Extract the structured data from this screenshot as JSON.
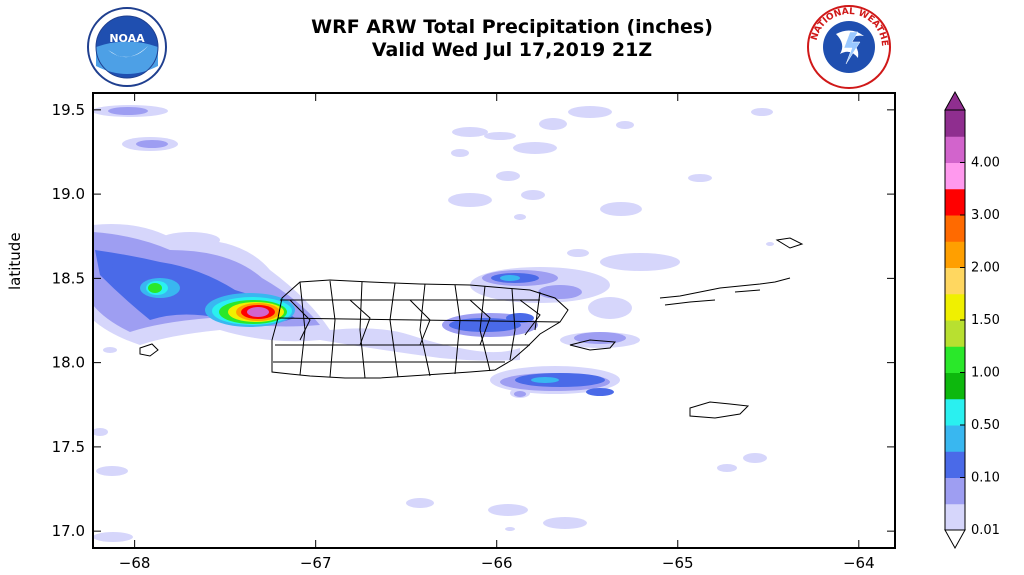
{
  "title": "WRF ARW Total Precipitation (inches)",
  "subtitle": "Valid Wed Jul 17,2019 21Z",
  "logos": [
    {
      "name": "noaa-logo",
      "text": "NOAA"
    },
    {
      "name": "nws-logo",
      "text": "NATIONAL WEATHER SERVICE"
    }
  ],
  "axes": {
    "ylabel": "latitude",
    "xlabel": "",
    "x_ticks": [
      "−68",
      "−67",
      "−66",
      "−65",
      "−64"
    ],
    "x_values": [
      -68,
      -67,
      -66,
      -65,
      -64
    ],
    "y_ticks": [
      "19.5",
      "19.0",
      "18.5",
      "18.0",
      "17.5",
      "17.0"
    ],
    "y_values": [
      19.5,
      19.0,
      18.5,
      18.0,
      17.5,
      17.0
    ],
    "xlim": [
      -68.23,
      -63.8
    ],
    "ylim": [
      16.9,
      19.6
    ]
  },
  "colorbar": {
    "levels": [
      "0.01",
      "0.10",
      "0.50",
      "1.00",
      "1.50",
      "2.00",
      "3.00",
      "4.00"
    ],
    "colors": [
      "#d6d6fb",
      "#9e9ef2",
      "#4a6ae8",
      "#39b7f0",
      "#2af0f0",
      "#0db80d",
      "#2ae82a",
      "#b8e030",
      "#f0f000",
      "#ffd760",
      "#ff9f00",
      "#ff6a00",
      "#ff0000",
      "#ff99ee",
      "#d264cc",
      "#8f2e8f"
    ]
  },
  "colors": {
    "light": "#d6d6fb",
    "lavender": "#9e9ef2",
    "blue": "#4a6ae8",
    "cyan": "#39b7f0",
    "aqua": "#2af0f0",
    "green": "#2ae82a",
    "yellow": "#f0f000",
    "orange": "#ff9f00",
    "red": "#ff0000",
    "magenta": "#d264cc",
    "purple": "#8f2e8f"
  }
}
